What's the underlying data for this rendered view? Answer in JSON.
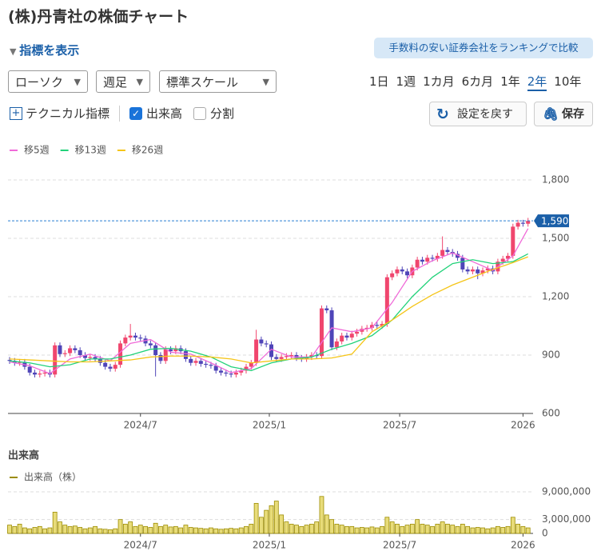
{
  "title": "(株)丹青社の株価チャート",
  "indicator_toggle": "指標を表示",
  "ranking_button": "手数料の安い証券会社をランキングで比較",
  "selects": [
    "ローソク",
    "週足",
    "標準スケール"
  ],
  "periods": [
    "1日",
    "1週",
    "1カ月",
    "6カ月",
    "1年",
    "2年",
    "10年"
  ],
  "active_period": "2年",
  "technical": "テクニカル指標",
  "checkboxes": [
    {
      "label": "出来高",
      "checked": true
    },
    {
      "label": "分割",
      "checked": false
    }
  ],
  "buttons": [
    "設定を戻す",
    "保存"
  ],
  "chart_data": [
    {
      "type": "candlestick",
      "up_color": "#f0466e",
      "down_color": "#4f45b8",
      "grid": true,
      "xlim": [
        0,
        104
      ],
      "xticks": [
        {
          "value": 26,
          "label": "2024/7"
        },
        {
          "value": 51.6,
          "label": "2025/1"
        },
        {
          "value": 77.5,
          "label": "2025/7"
        },
        {
          "value": 102,
          "label": "2026"
        }
      ],
      "ylim": [
        600,
        1800
      ],
      "yticks": [
        600,
        900,
        {
          "value": 1200,
          "label": "1,200"
        },
        {
          "value": 1500,
          "label": "1,500"
        },
        {
          "value": 1800,
          "label": "1,800"
        }
      ],
      "last_price": {
        "value": 1590,
        "label": "1,590"
      },
      "open": [
        875,
        870,
        860,
        865,
        840,
        810,
        800,
        805,
        810,
        800,
        950,
        905,
        910,
        935,
        925,
        900,
        885,
        890,
        880,
        860,
        840,
        830,
        850,
        960,
        990,
        1000,
        990,
        985,
        960,
        950,
        900,
        870,
        930,
        920,
        935,
        920,
        880,
        860,
        870,
        855,
        850,
        845,
        820,
        810,
        805,
        800,
        810,
        820,
        840,
        860,
        980,
        960,
        955,
        890,
        880,
        890,
        895,
        900,
        885,
        880,
        890,
        900,
        895,
        1140,
        1130,
        940,
        970,
        1000,
        990,
        1010,
        1020,
        1035,
        1040,
        1055,
        1050,
        1060,
        1300,
        1320,
        1340,
        1330,
        1310,
        1350,
        1390,
        1380,
        1400,
        1395,
        1410,
        1440,
        1430,
        1420,
        1400,
        1340,
        1330,
        1340,
        1320,
        1335,
        1345,
        1330,
        1380,
        1395,
        1410,
        1560,
        1580,
        1575
      ],
      "high": [
        890,
        885,
        880,
        880,
        855,
        825,
        820,
        825,
        825,
        965,
        965,
        925,
        950,
        950,
        940,
        915,
        905,
        905,
        895,
        875,
        855,
        865,
        975,
        1005,
        1060,
        1015,
        1005,
        1000,
        975,
        965,
        915,
        945,
        945,
        950,
        950,
        935,
        895,
        885,
        885,
        870,
        865,
        860,
        835,
        825,
        820,
        825,
        835,
        855,
        875,
        1030,
        995,
        975,
        970,
        905,
        905,
        910,
        915,
        915,
        900,
        905,
        915,
        915,
        1155,
        1155,
        1145,
        985,
        1015,
        1015,
        1025,
        1035,
        1050,
        1055,
        1070,
        1070,
        1075,
        1315,
        1335,
        1355,
        1355,
        1345,
        1365,
        1405,
        1405,
        1415,
        1415,
        1425,
        1510,
        1455,
        1445,
        1435,
        1415,
        1355,
        1355,
        1355,
        1350,
        1360,
        1360,
        1395,
        1410,
        1425,
        1575,
        1595,
        1595,
        1605
      ],
      "low": [
        855,
        845,
        845,
        825,
        795,
        785,
        785,
        790,
        785,
        785,
        890,
        890,
        895,
        910,
        885,
        870,
        870,
        865,
        845,
        825,
        815,
        815,
        835,
        945,
        975,
        975,
        970,
        945,
        935,
        790,
        855,
        855,
        905,
        905,
        905,
        865,
        845,
        845,
        840,
        835,
        830,
        805,
        795,
        790,
        785,
        785,
        795,
        805,
        825,
        845,
        945,
        940,
        875,
        865,
        865,
        875,
        880,
        870,
        865,
        865,
        875,
        880,
        880,
        1115,
        925,
        925,
        955,
        975,
        975,
        995,
        1005,
        1020,
        1025,
        1035,
        1035,
        1045,
        1285,
        1305,
        1315,
        1295,
        1295,
        1335,
        1365,
        1365,
        1380,
        1380,
        1395,
        1415,
        1405,
        1385,
        1325,
        1315,
        1315,
        1290,
        1305,
        1320,
        1315,
        1315,
        1365,
        1380,
        1395,
        1545,
        1560,
        1560
      ],
      "close": [
        870,
        860,
        865,
        840,
        810,
        800,
        805,
        810,
        800,
        950,
        905,
        910,
        935,
        925,
        900,
        885,
        890,
        880,
        860,
        840,
        830,
        850,
        960,
        990,
        1000,
        990,
        985,
        960,
        950,
        900,
        870,
        930,
        920,
        935,
        920,
        880,
        860,
        870,
        855,
        850,
        845,
        820,
        810,
        805,
        800,
        810,
        820,
        840,
        860,
        980,
        960,
        955,
        890,
        880,
        890,
        895,
        900,
        885,
        880,
        890,
        900,
        895,
        1140,
        1130,
        940,
        970,
        1000,
        990,
        1010,
        1020,
        1035,
        1040,
        1055,
        1050,
        1060,
        1300,
        1320,
        1340,
        1330,
        1310,
        1350,
        1390,
        1380,
        1400,
        1395,
        1410,
        1440,
        1430,
        1420,
        1400,
        1340,
        1330,
        1340,
        1320,
        1335,
        1345,
        1330,
        1380,
        1395,
        1410,
        1560,
        1580,
        1575,
        1590
      ],
      "series": [
        {
          "name": "移5週",
          "color": "#f06ad8",
          "x": [
            0,
            4,
            8,
            12,
            16,
            20,
            24,
            28,
            32,
            36,
            40,
            44,
            48,
            52,
            56,
            60,
            64,
            68,
            72,
            76,
            80,
            84,
            88,
            92,
            96,
            100,
            103
          ],
          "values": [
            865,
            845,
            805,
            880,
            905,
            870,
            960,
            980,
            915,
            905,
            860,
            810,
            830,
            930,
            890,
            890,
            1040,
            1020,
            1040,
            1170,
            1330,
            1385,
            1425,
            1380,
            1335,
            1410,
            1550
          ]
        },
        {
          "name": "移13週",
          "color": "#22d27a",
          "x": [
            0,
            4,
            8,
            12,
            16,
            20,
            24,
            28,
            32,
            36,
            40,
            44,
            48,
            52,
            56,
            60,
            64,
            68,
            72,
            76,
            80,
            84,
            88,
            92,
            96,
            100,
            103
          ],
          "values": [
            870,
            860,
            840,
            850,
            880,
            880,
            900,
            930,
            935,
            920,
            890,
            840,
            820,
            860,
            880,
            890,
            930,
            960,
            1000,
            1080,
            1200,
            1300,
            1370,
            1390,
            1370,
            1380,
            1420
          ]
        },
        {
          "name": "移26週",
          "color": "#f5c518",
          "x": [
            0,
            4,
            8,
            12,
            16,
            20,
            24,
            28,
            32,
            36,
            40,
            44,
            48,
            52,
            56,
            60,
            64,
            68,
            72,
            76,
            80,
            84,
            88,
            92,
            96,
            100,
            103
          ],
          "values": [
            880,
            875,
            870,
            865,
            865,
            870,
            875,
            890,
            895,
            895,
            890,
            880,
            860,
            870,
            880,
            880,
            885,
            905,
            1020,
            1080,
            1150,
            1210,
            1260,
            1300,
            1340,
            1375,
            1405
          ]
        }
      ]
    },
    {
      "type": "bar",
      "title": "出来高",
      "grid": true,
      "xlim": [
        0,
        104
      ],
      "xticks": [
        {
          "value": 26,
          "label": "2024/7"
        },
        {
          "value": 51.6,
          "label": "2025/1"
        },
        {
          "value": 77.5,
          "label": "2025/7"
        },
        {
          "value": 102,
          "label": "2026"
        }
      ],
      "ylim": [
        0,
        9000000
      ],
      "yticks": [
        0,
        {
          "value": 3000000,
          "label": "3,000,000"
        },
        {
          "value": 9000000,
          "label": "9,000,000"
        }
      ],
      "series": [
        {
          "name": "出来高（株）",
          "color": "#e8dc7a",
          "edge_color": "#9c8c00",
          "values": [
            1800000,
            1500000,
            2000000,
            1200000,
            1000000,
            1300000,
            1500000,
            1000000,
            1200000,
            4600000,
            2500000,
            1800000,
            1500000,
            1600000,
            1300000,
            1000000,
            1200000,
            1500000,
            1000000,
            900000,
            800000,
            1000000,
            3000000,
            2000000,
            2500000,
            1500000,
            1800000,
            1500000,
            1300000,
            2200000,
            1500000,
            1800000,
            1400000,
            1500000,
            1200000,
            1800000,
            1300000,
            1200000,
            1100000,
            1000000,
            1200000,
            1000000,
            900000,
            1000000,
            1100000,
            1000000,
            1200000,
            1500000,
            2000000,
            6500000,
            3500000,
            5000000,
            6000000,
            7000000,
            4000000,
            2500000,
            2000000,
            1800000,
            1500000,
            1800000,
            2000000,
            2500000,
            8000000,
            4000000,
            3000000,
            2000000,
            1800000,
            1500000,
            1500000,
            1200000,
            1300000,
            1200000,
            1400000,
            1200000,
            1500000,
            3500000,
            2500000,
            2000000,
            1500000,
            1800000,
            2000000,
            3000000,
            2000000,
            1800000,
            1500000,
            2000000,
            2500000,
            2000000,
            1800000,
            1500000,
            2000000,
            1500000,
            1200000,
            1300000,
            1200000,
            1000000,
            1200000,
            1500000,
            1300000,
            1500000,
            3500000,
            2000000,
            1500000,
            1200000
          ]
        }
      ]
    }
  ]
}
